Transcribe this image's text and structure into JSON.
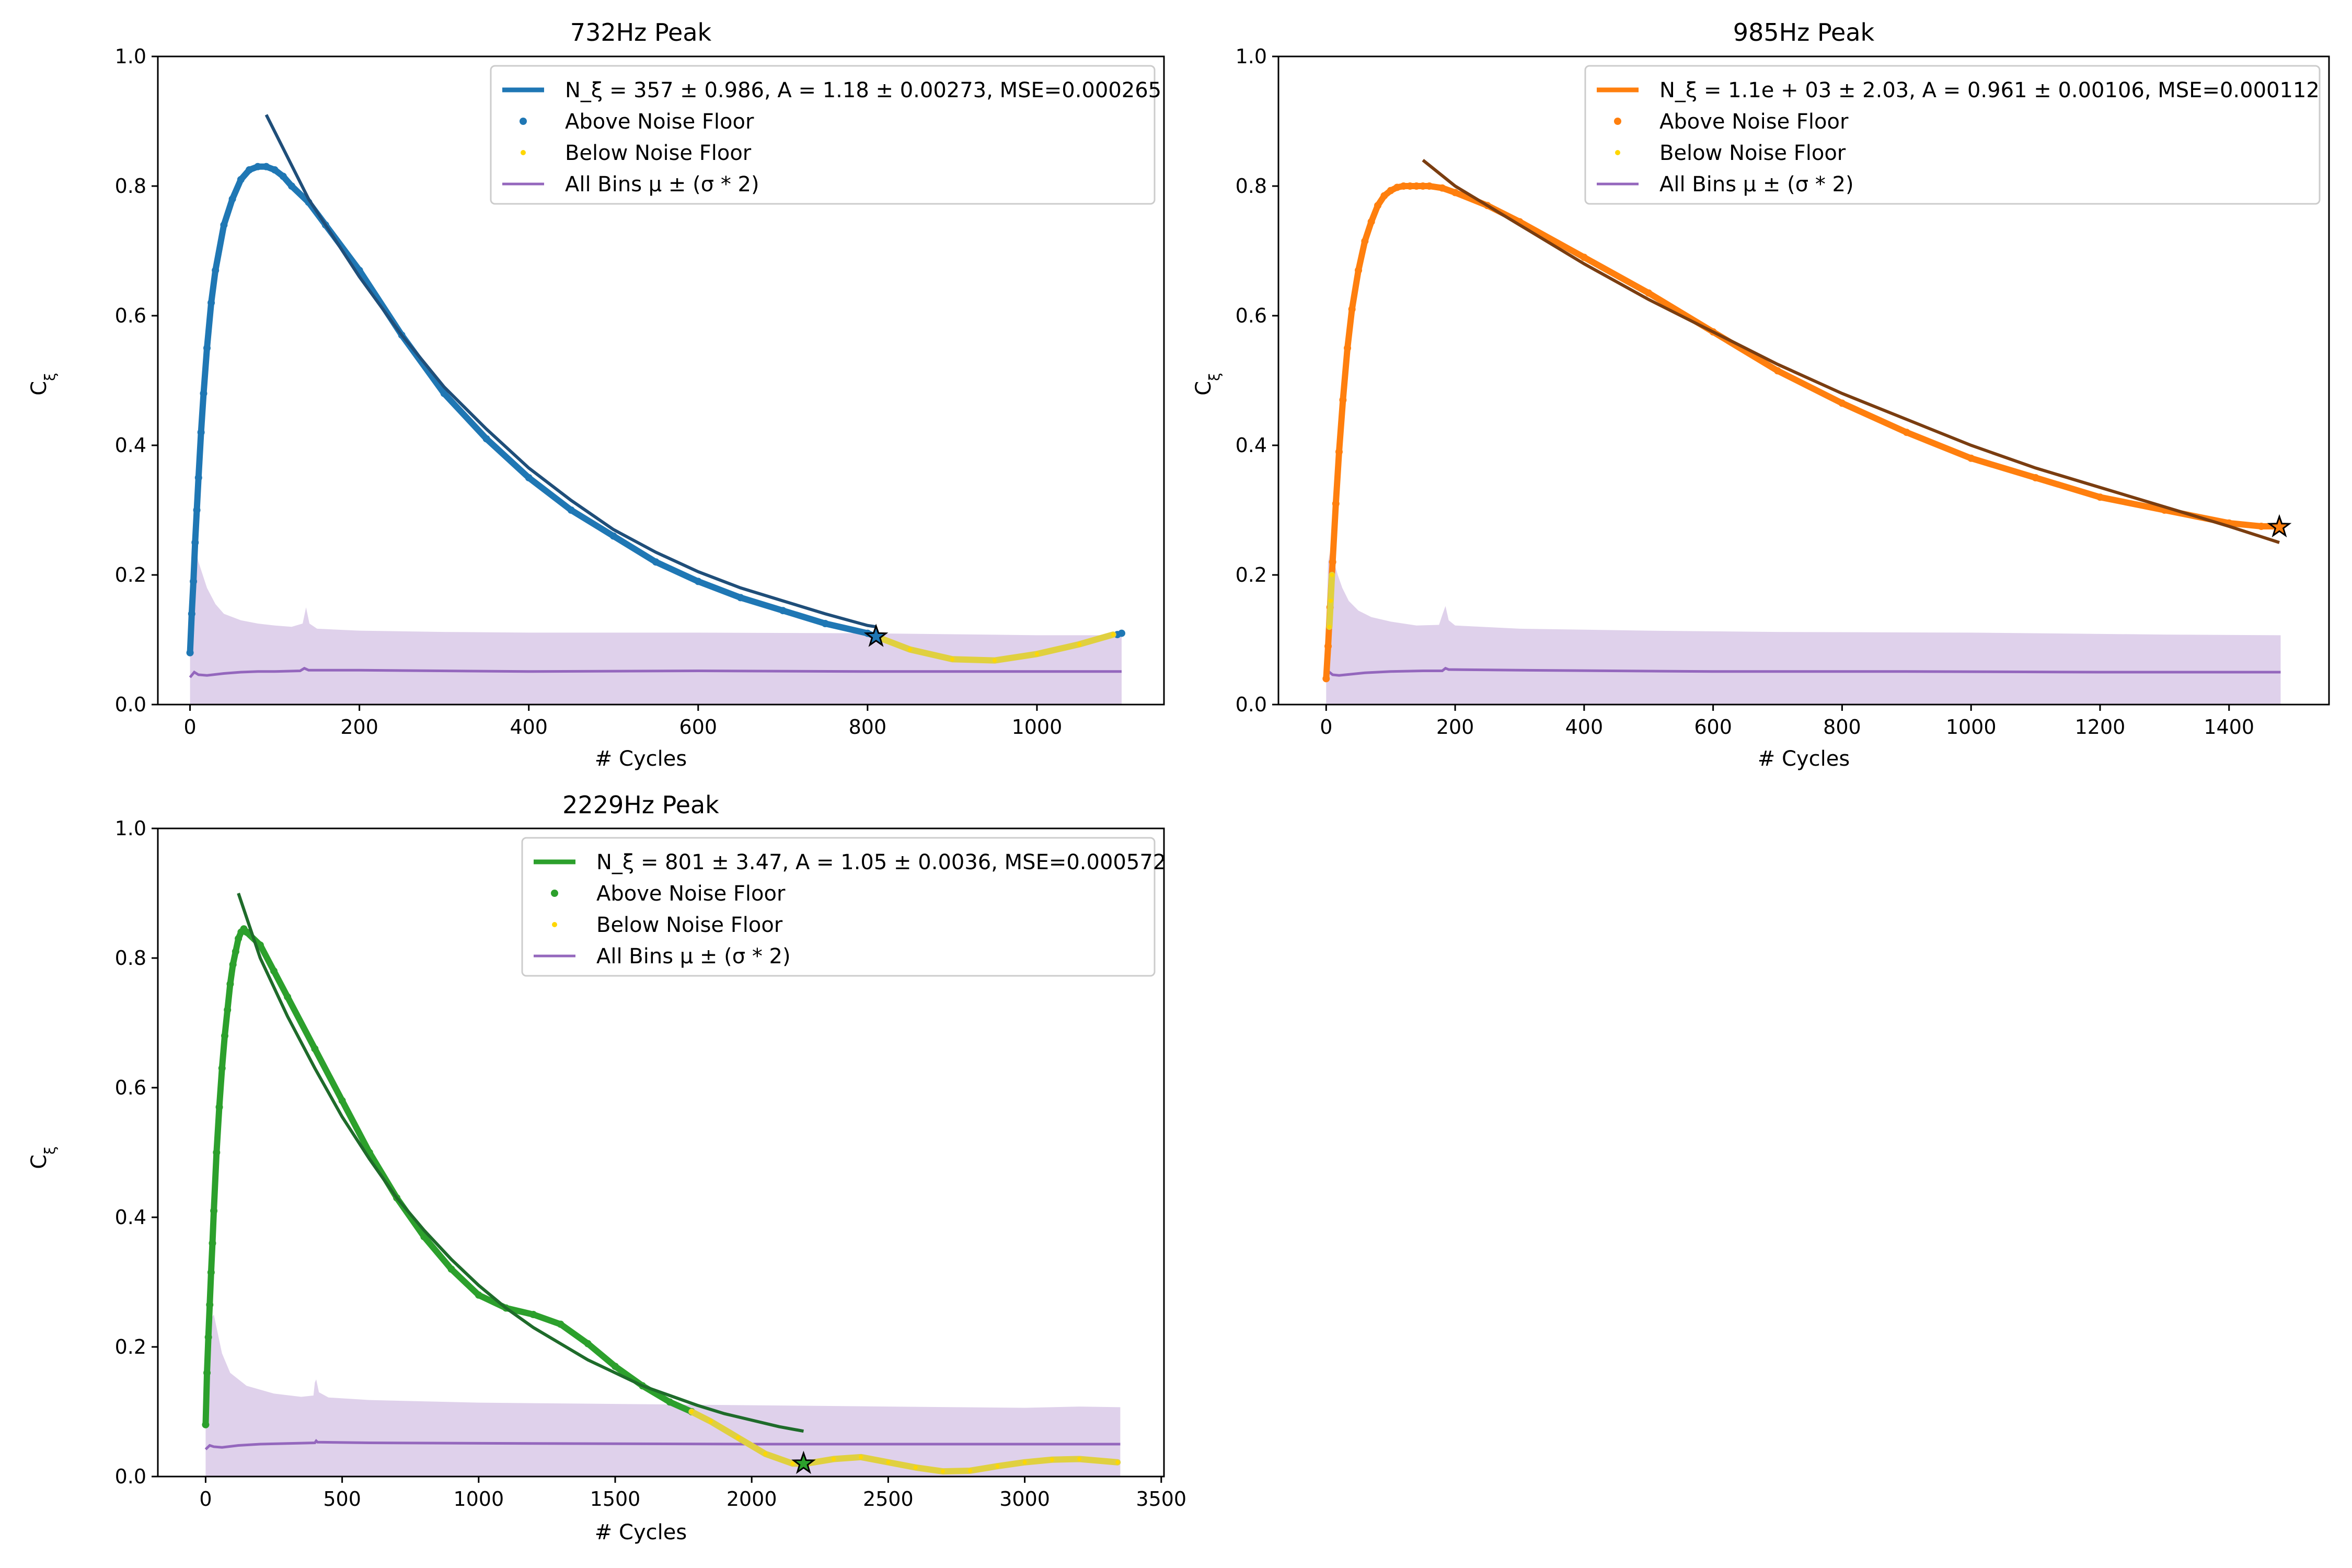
{
  "chart_data": [
    {
      "type": "scatter",
      "title": "732Hz Peak",
      "xlabel": "# Cycles",
      "ylabel": "C_ξ",
      "xlim": [
        -38,
        1150
      ],
      "ylim": [
        0,
        1.0
      ],
      "xticks": [
        0,
        200,
        400,
        600,
        800,
        1000
      ],
      "yticks": [
        0.0,
        0.2,
        0.4,
        0.6,
        0.8,
        1.0
      ],
      "color": "#1f77b4",
      "fit_color": "#1f4e79",
      "legend_position": "upper right",
      "legend": [
        {
          "kind": "fit",
          "label": "N_ξ = 357 ± 0.986, A = 1.18 ± 0.00273, MSE=0.000265"
        },
        {
          "kind": "above",
          "label": "Above Noise Floor"
        },
        {
          "kind": "below",
          "label": "Below Noise Floor"
        },
        {
          "kind": "band",
          "label": "All Bins μ ± (σ * 2)"
        }
      ],
      "above_noise": {
        "x": [
          0,
          2,
          4,
          6,
          8,
          10,
          13,
          16,
          20,
          25,
          30,
          40,
          50,
          60,
          70,
          80,
          90,
          100,
          110,
          120,
          140,
          160,
          200,
          250,
          300,
          350,
          400,
          450,
          500,
          550,
          600,
          650,
          700,
          750,
          800,
          810
        ],
        "y": [
          0.08,
          0.14,
          0.19,
          0.25,
          0.3,
          0.35,
          0.42,
          0.48,
          0.55,
          0.62,
          0.67,
          0.74,
          0.78,
          0.81,
          0.825,
          0.83,
          0.83,
          0.825,
          0.815,
          0.8,
          0.775,
          0.74,
          0.67,
          0.57,
          0.48,
          0.41,
          0.35,
          0.3,
          0.26,
          0.22,
          0.19,
          0.165,
          0.145,
          0.125,
          0.11,
          0.105
        ]
      },
      "below_noise": {
        "x": [
          810,
          850,
          900,
          950,
          1000,
          1050,
          1090
        ],
        "y": [
          0.105,
          0.085,
          0.07,
          0.068,
          0.078,
          0.093,
          0.108
        ]
      },
      "extra_above": {
        "x": [
          1095,
          1100
        ],
        "y": [
          0.108,
          0.11
        ]
      },
      "fit": {
        "x": [
          90,
          140,
          200,
          250,
          300,
          350,
          400,
          450,
          500,
          550,
          600,
          650,
          700,
          750,
          800,
          810
        ],
        "y": [
          0.91,
          0.78,
          0.66,
          0.57,
          0.49,
          0.425,
          0.365,
          0.315,
          0.27,
          0.235,
          0.205,
          0.18,
          0.16,
          0.14,
          0.122,
          0.12
        ]
      },
      "star": {
        "x": 810,
        "y": 0.105
      },
      "mean": {
        "x": [
          0,
          5,
          10,
          20,
          40,
          60,
          80,
          100,
          130,
          135,
          140,
          200,
          400,
          600,
          800,
          1000,
          1100
        ],
        "y": [
          0.042,
          0.05,
          0.046,
          0.045,
          0.048,
          0.05,
          0.051,
          0.051,
          0.052,
          0.056,
          0.053,
          0.053,
          0.051,
          0.052,
          0.051,
          0.051,
          0.051
        ]
      },
      "upper": {
        "x": [
          0,
          2,
          5,
          10,
          15,
          20,
          30,
          40,
          60,
          80,
          100,
          120,
          133,
          137,
          141,
          150,
          200,
          300,
          400,
          600,
          800,
          1000,
          1100
        ],
        "y": [
          0.1,
          0.24,
          0.25,
          0.22,
          0.2,
          0.18,
          0.155,
          0.14,
          0.13,
          0.125,
          0.122,
          0.12,
          0.125,
          0.15,
          0.125,
          0.117,
          0.114,
          0.112,
          0.111,
          0.111,
          0.11,
          0.107,
          0.107
        ]
      }
    },
    {
      "type": "scatter",
      "title": "985Hz Peak",
      "xlabel": "# Cycles",
      "ylabel": "C_ξ",
      "xlim": [
        -74,
        1555
      ],
      "ylim": [
        0,
        1.0
      ],
      "xticks": [
        0,
        200,
        400,
        600,
        800,
        1000,
        1200,
        1400
      ],
      "yticks": [
        0.0,
        0.2,
        0.4,
        0.6,
        0.8,
        1.0
      ],
      "color": "#ff7f0e",
      "fit_color": "#7a3d10",
      "legend_position": "upper right",
      "legend": [
        {
          "kind": "fit",
          "label": "N_ξ = 1.1e + 03 ± 2.03, A = 0.961 ± 0.00106, MSE=0.000112"
        },
        {
          "kind": "above",
          "label": "Above Noise Floor"
        },
        {
          "kind": "below",
          "label": "Below Noise Floor"
        },
        {
          "kind": "band",
          "label": "All Bins μ ± (σ * 2)"
        }
      ],
      "above_noise": {
        "x": [
          0,
          3,
          6,
          10,
          15,
          20,
          26,
          33,
          40,
          50,
          60,
          70,
          80,
          90,
          100,
          110,
          120,
          130,
          140,
          150,
          160,
          180,
          200,
          250,
          300,
          400,
          500,
          600,
          700,
          800,
          900,
          1000,
          1100,
          1200,
          1300,
          1400,
          1450,
          1478
        ],
        "y": [
          0.04,
          0.09,
          0.15,
          0.22,
          0.31,
          0.39,
          0.47,
          0.55,
          0.61,
          0.67,
          0.715,
          0.745,
          0.77,
          0.785,
          0.793,
          0.798,
          0.8,
          0.8,
          0.8,
          0.8,
          0.8,
          0.797,
          0.79,
          0.77,
          0.745,
          0.69,
          0.635,
          0.575,
          0.515,
          0.465,
          0.42,
          0.38,
          0.35,
          0.32,
          0.3,
          0.28,
          0.275,
          0.275
        ]
      },
      "below_noise": {
        "x": [
          5,
          7,
          9
        ],
        "y": [
          0.12,
          0.16,
          0.2
        ]
      },
      "extra_above": {
        "x": [],
        "y": []
      },
      "fit": {
        "x": [
          150,
          200,
          300,
          400,
          500,
          600,
          700,
          800,
          900,
          1000,
          1100,
          1200,
          1300,
          1400,
          1478
        ],
        "y": [
          0.84,
          0.8,
          0.74,
          0.68,
          0.625,
          0.575,
          0.525,
          0.48,
          0.44,
          0.4,
          0.365,
          0.335,
          0.305,
          0.275,
          0.25
        ]
      },
      "star": {
        "x": 1478,
        "y": 0.274
      },
      "mean": {
        "x": [
          0,
          5,
          10,
          20,
          40,
          60,
          80,
          100,
          150,
          180,
          185,
          190,
          300,
          600,
          900,
          1200,
          1480
        ],
        "y": [
          0.044,
          0.05,
          0.046,
          0.045,
          0.047,
          0.049,
          0.05,
          0.051,
          0.052,
          0.052,
          0.056,
          0.054,
          0.053,
          0.051,
          0.051,
          0.05,
          0.05
        ]
      },
      "upper": {
        "x": [
          0,
          3,
          7,
          12,
          18,
          25,
          35,
          50,
          70,
          100,
          140,
          175,
          180,
          185,
          190,
          200,
          300,
          500,
          700,
          1000,
          1300,
          1480
        ],
        "y": [
          0.1,
          0.22,
          0.24,
          0.22,
          0.2,
          0.18,
          0.16,
          0.145,
          0.135,
          0.128,
          0.122,
          0.123,
          0.138,
          0.152,
          0.13,
          0.122,
          0.117,
          0.114,
          0.112,
          0.111,
          0.108,
          0.107
        ]
      }
    },
    {
      "type": "scatter",
      "title": "2229Hz Peak",
      "xlabel": "# Cycles",
      "ylabel": "C_ξ",
      "xlim": [
        -175,
        3510
      ],
      "ylim": [
        0,
        1.0
      ],
      "xticks": [
        0,
        500,
        1000,
        1500,
        2000,
        2500,
        3000,
        3500
      ],
      "yticks": [
        0.0,
        0.2,
        0.4,
        0.6,
        0.8,
        1.0
      ],
      "color": "#2ca02c",
      "fit_color": "#1e6b2a",
      "legend_position": "upper right",
      "legend": [
        {
          "kind": "fit",
          "label": "N_ξ = 801 ± 3.47, A = 1.05 ± 0.0036, MSE=0.000572"
        },
        {
          "kind": "above",
          "label": "Above Noise Floor"
        },
        {
          "kind": "below",
          "label": "Below Noise Floor"
        },
        {
          "kind": "band",
          "label": "All Bins μ ± (σ * 2)"
        }
      ],
      "above_noise": {
        "x": [
          0,
          5,
          10,
          15,
          20,
          25,
          30,
          40,
          50,
          60,
          70,
          80,
          90,
          100,
          110,
          120,
          130,
          140,
          150,
          200,
          250,
          300,
          400,
          500,
          600,
          700,
          800,
          900,
          1000,
          1100,
          1200,
          1300,
          1400,
          1500,
          1600,
          1700,
          1780
        ],
        "y": [
          0.08,
          0.16,
          0.215,
          0.265,
          0.315,
          0.36,
          0.41,
          0.5,
          0.57,
          0.63,
          0.68,
          0.72,
          0.76,
          0.79,
          0.81,
          0.83,
          0.84,
          0.845,
          0.84,
          0.82,
          0.78,
          0.74,
          0.66,
          0.58,
          0.5,
          0.43,
          0.37,
          0.32,
          0.28,
          0.26,
          0.25,
          0.235,
          0.205,
          0.17,
          0.14,
          0.115,
          0.1
        ]
      },
      "below_noise": {
        "x": [
          1780,
          1850,
          1950,
          2050,
          2150,
          2200,
          2300,
          2400,
          2500,
          2600,
          2700,
          2800,
          2900,
          3000,
          3100,
          3200,
          3340
        ],
        "y": [
          0.1,
          0.085,
          0.06,
          0.035,
          0.02,
          0.02,
          0.027,
          0.03,
          0.022,
          0.014,
          0.008,
          0.009,
          0.016,
          0.022,
          0.026,
          0.027,
          0.022
        ]
      },
      "extra_above": {
        "x": [],
        "y": []
      },
      "fit": {
        "x": [
          120,
          200,
          300,
          400,
          500,
          600,
          700,
          800,
          900,
          1000,
          1100,
          1200,
          1300,
          1400,
          1500,
          1600,
          1700,
          1800,
          1900,
          2000,
          2100,
          2190
        ],
        "y": [
          0.9,
          0.8,
          0.71,
          0.63,
          0.555,
          0.49,
          0.43,
          0.38,
          0.335,
          0.295,
          0.26,
          0.23,
          0.205,
          0.18,
          0.16,
          0.14,
          0.125,
          0.11,
          0.097,
          0.087,
          0.077,
          0.07
        ]
      },
      "star": {
        "x": 2190,
        "y": 0.02
      },
      "mean": {
        "x": [
          0,
          15,
          30,
          60,
          120,
          200,
          300,
          400,
          405,
          410,
          600,
          1200,
          2000,
          2800,
          3350
        ],
        "y": [
          0.042,
          0.048,
          0.046,
          0.045,
          0.048,
          0.05,
          0.051,
          0.052,
          0.055,
          0.053,
          0.052,
          0.051,
          0.05,
          0.05,
          0.05
        ]
      },
      "upper": {
        "x": [
          0,
          5,
          15,
          30,
          45,
          60,
          90,
          150,
          250,
          350,
          395,
          400,
          405,
          415,
          450,
          600,
          1000,
          1500,
          2000,
          2500,
          3000,
          3200,
          3350
        ],
        "y": [
          0.1,
          0.2,
          0.24,
          0.25,
          0.22,
          0.19,
          0.16,
          0.14,
          0.128,
          0.123,
          0.125,
          0.145,
          0.15,
          0.13,
          0.122,
          0.118,
          0.114,
          0.112,
          0.11,
          0.108,
          0.106,
          0.108,
          0.107
        ]
      }
    }
  ]
}
